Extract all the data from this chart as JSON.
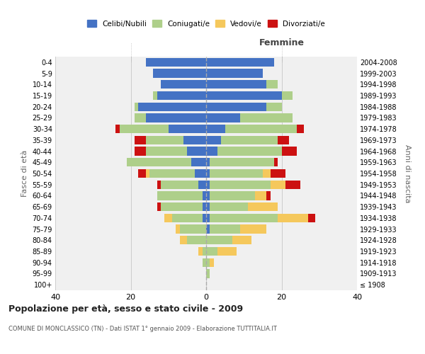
{
  "age_groups": [
    "100+",
    "95-99",
    "90-94",
    "85-89",
    "80-84",
    "75-79",
    "70-74",
    "65-69",
    "60-64",
    "55-59",
    "50-54",
    "45-49",
    "40-44",
    "35-39",
    "30-34",
    "25-29",
    "20-24",
    "15-19",
    "10-14",
    "5-9",
    "0-4"
  ],
  "birth_years": [
    "≤ 1908",
    "1909-1913",
    "1914-1918",
    "1919-1923",
    "1924-1928",
    "1929-1933",
    "1934-1938",
    "1939-1943",
    "1944-1948",
    "1949-1953",
    "1954-1958",
    "1959-1963",
    "1964-1968",
    "1969-1973",
    "1974-1978",
    "1979-1983",
    "1984-1988",
    "1989-1993",
    "1994-1998",
    "1999-2003",
    "2004-2008"
  ],
  "male": {
    "celibi": [
      0,
      0,
      0,
      0,
      0,
      0,
      1,
      1,
      1,
      2,
      3,
      4,
      5,
      6,
      10,
      16,
      18,
      13,
      12,
      14,
      16
    ],
    "coniugati": [
      0,
      0,
      1,
      1,
      5,
      7,
      8,
      11,
      12,
      10,
      12,
      17,
      11,
      10,
      13,
      3,
      1,
      1,
      0,
      0,
      0
    ],
    "vedovi": [
      0,
      0,
      0,
      1,
      2,
      1,
      2,
      0,
      0,
      0,
      1,
      0,
      0,
      0,
      0,
      0,
      0,
      0,
      0,
      0,
      0
    ],
    "divorziati": [
      0,
      0,
      0,
      0,
      0,
      0,
      0,
      1,
      0,
      1,
      2,
      0,
      3,
      3,
      1,
      0,
      0,
      0,
      0,
      0,
      0
    ]
  },
  "female": {
    "nubili": [
      0,
      0,
      0,
      0,
      0,
      1,
      1,
      1,
      1,
      1,
      1,
      1,
      3,
      4,
      5,
      9,
      16,
      20,
      16,
      15,
      18
    ],
    "coniugate": [
      0,
      1,
      1,
      3,
      7,
      8,
      18,
      10,
      12,
      16,
      14,
      17,
      17,
      15,
      19,
      14,
      4,
      3,
      3,
      0,
      0
    ],
    "vedove": [
      0,
      0,
      1,
      5,
      5,
      7,
      8,
      8,
      3,
      4,
      2,
      0,
      0,
      0,
      0,
      0,
      0,
      0,
      0,
      0,
      0
    ],
    "divorziate": [
      0,
      0,
      0,
      0,
      0,
      0,
      2,
      0,
      1,
      4,
      4,
      1,
      4,
      3,
      2,
      0,
      0,
      0,
      0,
      0,
      0
    ]
  },
  "colors": {
    "celibi_nubili": "#4472C4",
    "coniugati": "#AECF8A",
    "vedovi": "#F5C85C",
    "divorziati": "#CC1111"
  },
  "xlim": 40,
  "title": "Popolazione per età, sesso e stato civile - 2009",
  "subtitle": "COMUNE DI MONCLASSICO (TN) - Dati ISTAT 1° gennaio 2009 - Elaborazione TUTTITALIA.IT",
  "ylabel_left": "Fasce di età",
  "ylabel_right": "Anni di nascita",
  "xlabel_right": "Femmine",
  "bg_color": "#f0f0f0",
  "grid_color": "#cccccc"
}
